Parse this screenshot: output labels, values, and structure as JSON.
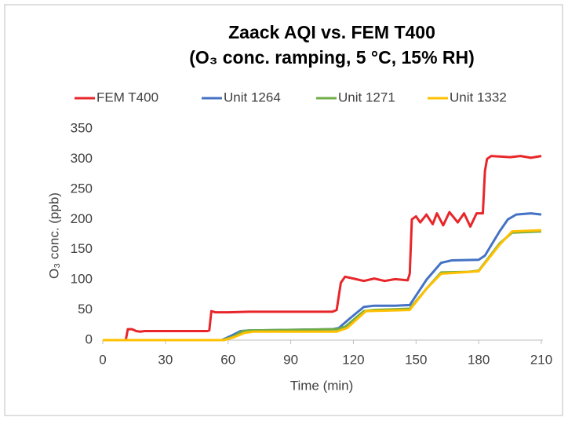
{
  "chart_data": {
    "type": "line",
    "title": "Zaack AQI vs. FEM T400",
    "subtitle": "(O₃ conc. ramping, 5 °C, 15% RH)",
    "xlabel": "Time (min)",
    "ylabel": "O₃ conc. (ppb)",
    "xlim": [
      0,
      210
    ],
    "xticks": [
      0,
      30,
      60,
      90,
      120,
      150,
      180,
      210
    ],
    "ylim": [
      0,
      350
    ],
    "yticks": [
      0,
      50,
      100,
      150,
      200,
      250,
      300,
      350
    ],
    "grid": false,
    "legend": "top",
    "series": [
      {
        "name": "FEM T400",
        "color": "#e8262a",
        "x": [
          0,
          11,
          12,
          14,
          16,
          18,
          20,
          25,
          50,
          51,
          52,
          54,
          60,
          70,
          90,
          110,
          112,
          114,
          116,
          120,
          125,
          130,
          135,
          140,
          146,
          147,
          148,
          150,
          152,
          155,
          158,
          160,
          163,
          166,
          170,
          173,
          176,
          179,
          182,
          183,
          184,
          186,
          195,
          200,
          205,
          210
        ],
        "values": [
          0,
          0,
          18,
          18,
          15,
          14,
          15,
          15,
          15,
          16,
          48,
          46,
          46,
          47,
          47,
          47,
          50,
          95,
          105,
          102,
          98,
          102,
          98,
          101,
          99,
          110,
          200,
          205,
          195,
          208,
          192,
          210,
          190,
          212,
          195,
          210,
          188,
          210,
          210,
          280,
          300,
          305,
          303,
          305,
          302,
          305
        ]
      },
      {
        "name": "Unit 1264",
        "color": "#4472c4",
        "x": [
          0,
          57,
          62,
          66,
          70,
          110,
          113,
          118,
          125,
          130,
          140,
          147,
          155,
          162,
          167,
          180,
          183,
          190,
          194,
          198,
          205,
          210
        ],
        "values": [
          0,
          0,
          8,
          15,
          16,
          18,
          20,
          35,
          55,
          57,
          57,
          58,
          100,
          128,
          132,
          133,
          140,
          180,
          200,
          208,
          210,
          208
        ]
      },
      {
        "name": "Unit 1271",
        "color": "#70ad47",
        "x": [
          0,
          57,
          62,
          67,
          70,
          112,
          116,
          125,
          130,
          147,
          155,
          162,
          175,
          180,
          190,
          196,
          210
        ],
        "values": [
          0,
          0,
          5,
          15,
          16,
          18,
          22,
          48,
          50,
          52,
          85,
          112,
          113,
          115,
          160,
          178,
          180
        ]
      },
      {
        "name": "Unit 1332",
        "color": "#ffc000",
        "x": [
          0,
          58,
          63,
          68,
          72,
          112,
          117,
          126,
          147,
          155,
          162,
          180,
          190,
          196,
          210
        ],
        "values": [
          0,
          0,
          5,
          12,
          14,
          14,
          20,
          48,
          50,
          85,
          110,
          114,
          158,
          180,
          182
        ]
      }
    ]
  }
}
